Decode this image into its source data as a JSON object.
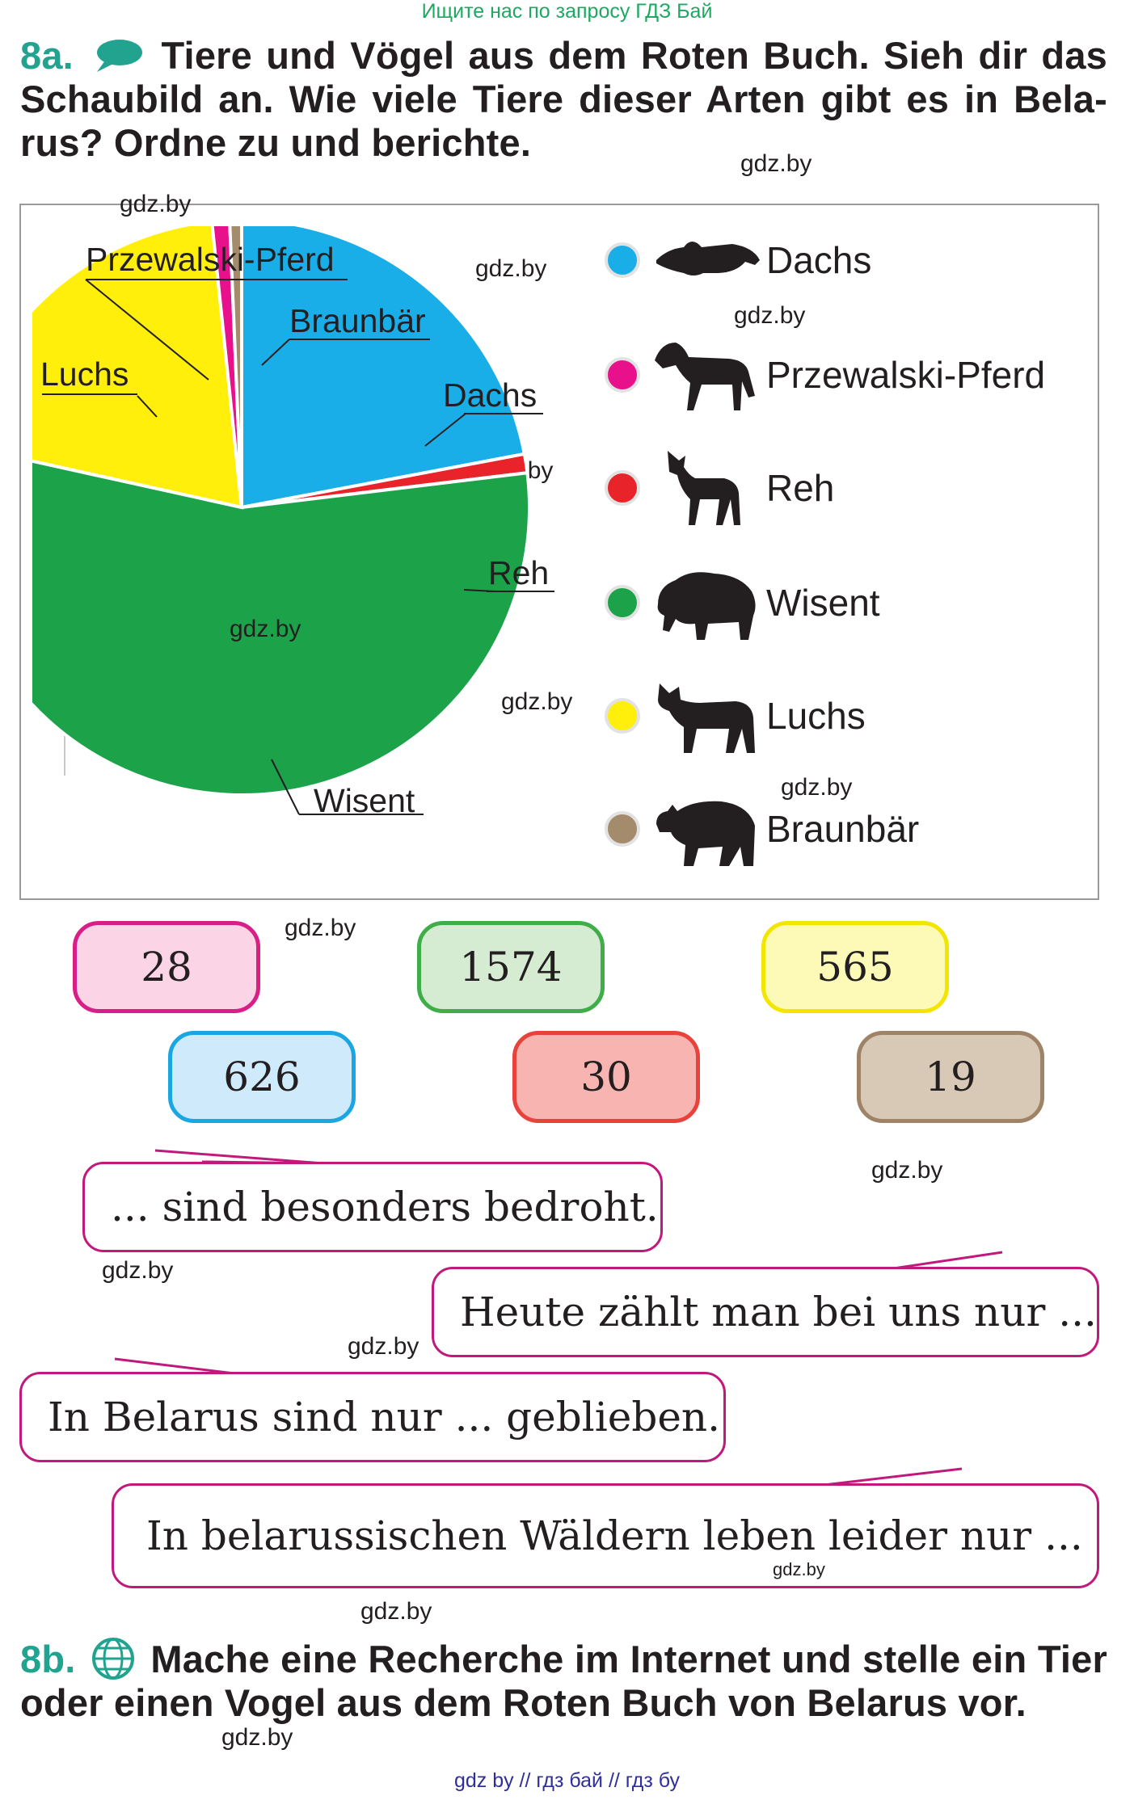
{
  "top_link": "Ищите нас по запросу ГДЗ Бай",
  "task_a": {
    "number": "8a.",
    "text": "Tiere und Vögel aus dem Roten Buch. Sieh dir das Schaubild an. Wie viele Tiere dieser Arten gibt es in Bela-rus? Ordne zu und berichte."
  },
  "watermarks": [
    "gdz.by"
  ],
  "chart_data": {
    "type": "pie",
    "title": "",
    "start_angle_deg": 0,
    "direction": "clockwise",
    "slices": [
      {
        "label": "Dachs",
        "value": 626,
        "color": "#1aaee8"
      },
      {
        "label": "Reh",
        "value": 30,
        "color": "#e8232a"
      },
      {
        "label": "Wisent",
        "value": 1574,
        "color": "#1ca34a"
      },
      {
        "label": "Luchs",
        "value": 565,
        "color": "#ffef0a"
      },
      {
        "label": "Przewalski-Pferd",
        "value": 28,
        "color": "#e8118b"
      },
      {
        "label": "Braunbär",
        "value": 19,
        "color": "#a38b6b"
      }
    ],
    "legend_placement": "right"
  },
  "legend": [
    {
      "label": "Dachs",
      "color": "#1aaee8",
      "icon": "badger-icon"
    },
    {
      "label": "Przewalski-Pferd",
      "color": "#e8118b",
      "icon": "horse-icon"
    },
    {
      "label": "Reh",
      "color": "#e8232a",
      "icon": "deer-icon"
    },
    {
      "label": "Wisent",
      "color": "#1ca34a",
      "icon": "bison-icon"
    },
    {
      "label": "Luchs",
      "color": "#ffef0a",
      "icon": "lynx-icon"
    },
    {
      "label": "Braunbär",
      "color": "#a38b6b",
      "icon": "bear-icon"
    }
  ],
  "numbers": [
    {
      "value": "28",
      "bg": "#fbd5e5",
      "border": "#d81f87"
    },
    {
      "value": "1574",
      "bg": "#d6ecd2",
      "border": "#3fae49"
    },
    {
      "value": "565",
      "bg": "#fdf9b7",
      "border": "#f2e500"
    },
    {
      "value": "626",
      "bg": "#cfeafb",
      "border": "#1aa5e3"
    },
    {
      "value": "30",
      "bg": "#f8b4b0",
      "border": "#e8423d"
    },
    {
      "value": "19",
      "bg": "#d8c9b6",
      "border": "#9e8367"
    }
  ],
  "sentences": [
    "... sind besonders bedroht.",
    "Heute zählt man bei uns nur ...",
    "In Belarus sind nur ... geblieben.",
    "In belarussischen Wäldern leben leider nur ..."
  ],
  "task_b": {
    "number": "8b.",
    "text": "Mache eine Recherche im Internet und stelle ein Tier oder einen Vogel aus dem Roten Buch von Belarus vor."
  },
  "footer": "gdz by  //  гдз бай  //  гдз бу"
}
